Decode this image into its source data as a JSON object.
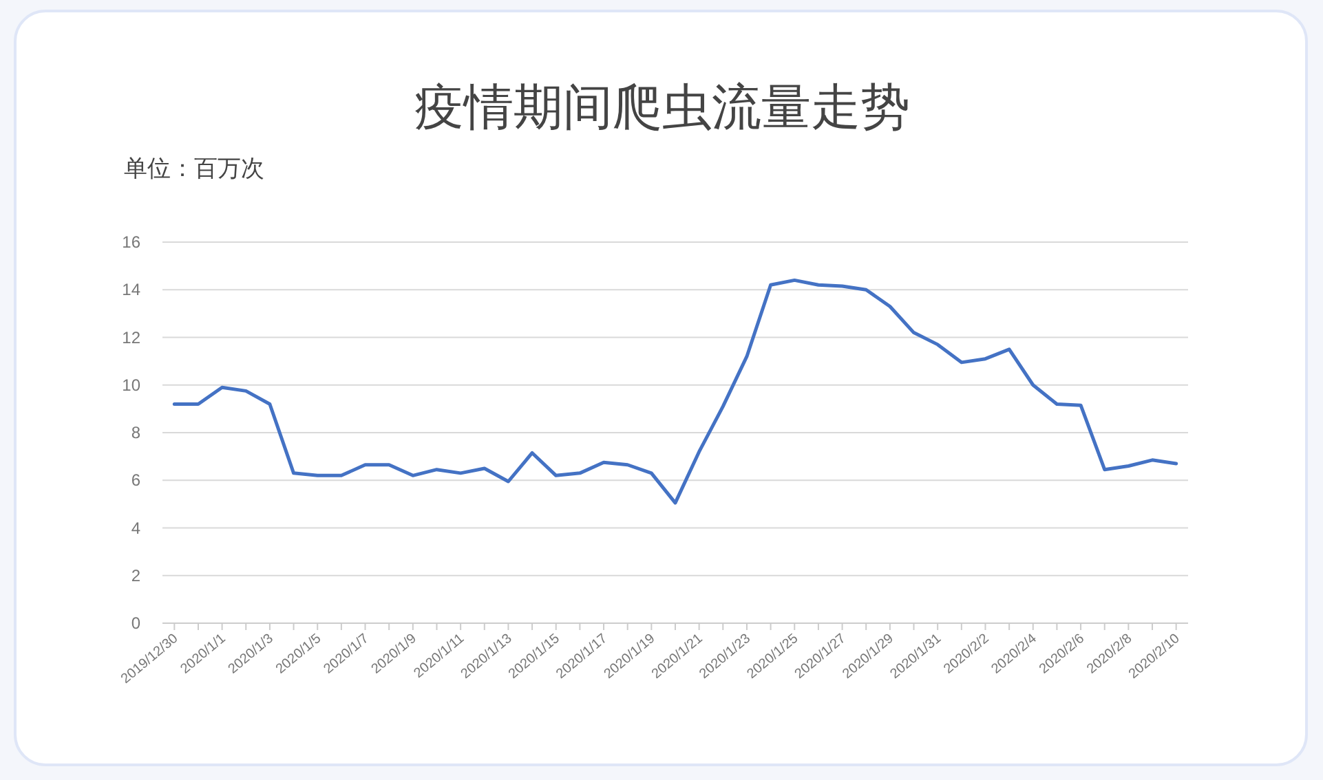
{
  "chart_data": {
    "type": "line",
    "title": "疫情期间爬虫流量走势",
    "annotations": [
      "单位：百万次"
    ],
    "categories": [
      "2019/12/30",
      null,
      "2020/1/1",
      null,
      "2020/1/3",
      null,
      "2020/1/5",
      null,
      "2020/1/7",
      null,
      "2020/1/9",
      null,
      "2020/1/11",
      null,
      "2020/1/13",
      null,
      "2020/1/15",
      null,
      "2020/1/17",
      null,
      "2020/1/19",
      null,
      "2020/1/21",
      null,
      "2020/1/23",
      null,
      "2020/1/25",
      null,
      "2020/1/27",
      null,
      "2020/1/29",
      null,
      "2020/1/31",
      null,
      "2020/2/2",
      null,
      "2020/2/4",
      null,
      "2020/2/6",
      null,
      "2020/2/8",
      null,
      "2020/2/10"
    ],
    "values": [
      9.2,
      9.2,
      9.9,
      9.75,
      9.2,
      6.3,
      6.2,
      6.2,
      6.65,
      6.65,
      6.2,
      6.45,
      6.3,
      6.5,
      5.95,
      7.15,
      6.2,
      6.3,
      6.75,
      6.65,
      6.3,
      5.05,
      7.2,
      9.1,
      11.2,
      14.2,
      14.4,
      14.2,
      14.15,
      14.0,
      13.3,
      12.2,
      11.7,
      10.95,
      11.1,
      11.5,
      10.0,
      9.2,
      9.15,
      6.45,
      6.6,
      6.85,
      6.7
    ],
    "color": "#4472c4",
    "ylim": [
      0,
      16
    ],
    "yticks": [
      0,
      2,
      4,
      6,
      8,
      10,
      12,
      14,
      16
    ],
    "grid": "y"
  }
}
